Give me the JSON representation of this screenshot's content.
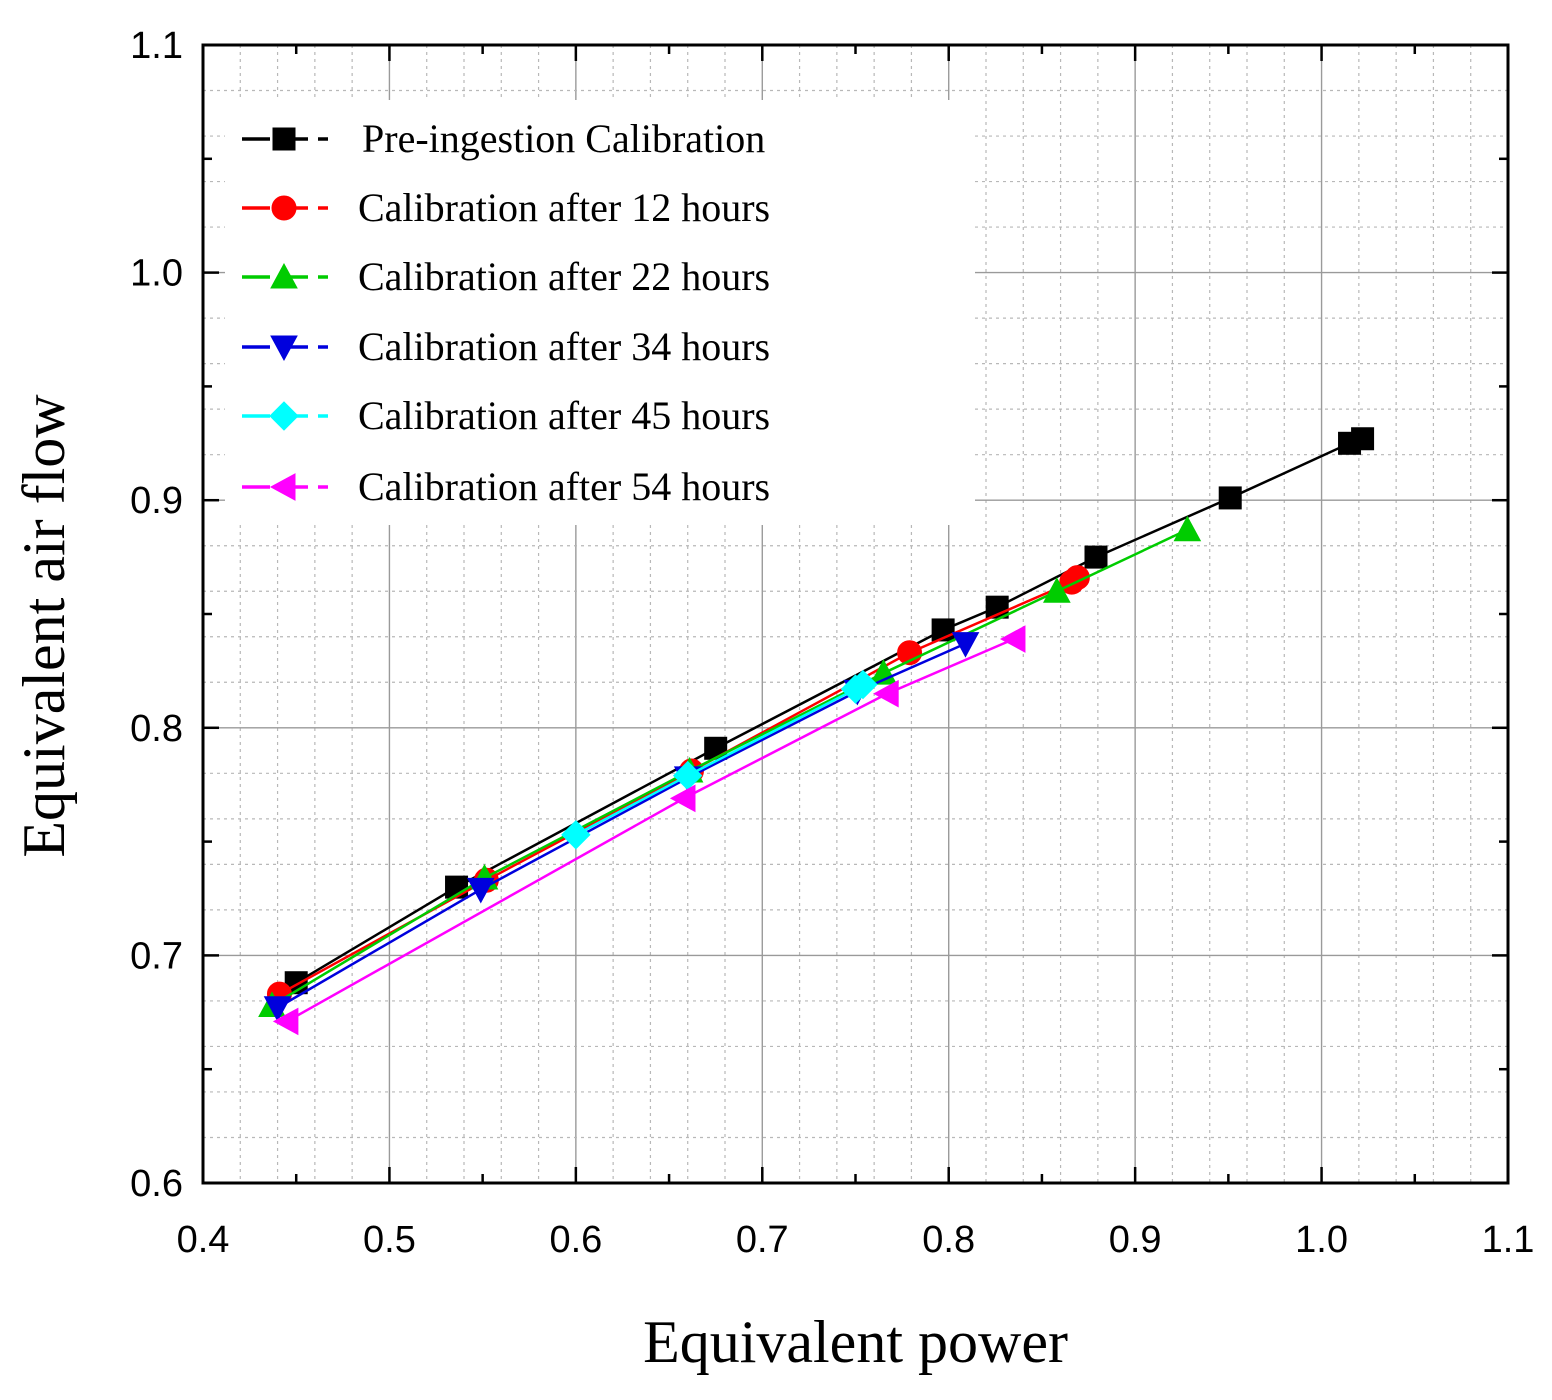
{
  "chart_data": {
    "type": "line",
    "title": "",
    "xlabel": "Equivalent power",
    "ylabel": "Equivalent air flow",
    "xlim": [
      0.4,
      1.1
    ],
    "ylim": [
      0.6,
      1.1
    ],
    "x_major_ticks": [
      0.4,
      0.5,
      0.6,
      0.7,
      0.8,
      0.9,
      1.0,
      1.1
    ],
    "y_major_ticks": [
      0.6,
      0.7,
      0.8,
      0.9,
      1.0,
      1.1
    ],
    "x_tick_labels": [
      "0.4",
      "0.5",
      "0.6",
      "0.7",
      "0.8",
      "0.9",
      "1.0",
      "1.1"
    ],
    "y_tick_labels": [
      "0.6",
      "0.7",
      "0.8",
      "0.9",
      "1.0",
      "1.1"
    ],
    "grid": true,
    "legend_position": "top-left",
    "series": [
      {
        "name": "Pre-ingestion Calibration",
        "color": "#000000",
        "marker": "square",
        "x": [
          0.45,
          0.536,
          0.675,
          0.797,
          0.826,
          0.879,
          0.951,
          1.015,
          1.022
        ],
        "y": [
          0.688,
          0.73,
          0.791,
          0.843,
          0.853,
          0.875,
          0.901,
          0.925,
          0.927
        ]
      },
      {
        "name": "Calibration after 12 hours",
        "color": "#ff0000",
        "marker": "circle",
        "x": [
          0.441,
          0.552,
          0.662,
          0.779,
          0.866,
          0.869
        ],
        "y": [
          0.683,
          0.733,
          0.781,
          0.833,
          0.864,
          0.866
        ]
      },
      {
        "name": "Calibration after 22 hours",
        "color": "#00cc00",
        "marker": "triangle-up",
        "x": [
          0.437,
          0.551,
          0.661,
          0.765,
          0.858,
          0.928
        ],
        "y": [
          0.678,
          0.734,
          0.781,
          0.824,
          0.86,
          0.887
        ]
      },
      {
        "name": "Calibration after 34 hours",
        "color": "#0000dd",
        "marker": "triangle-down",
        "x": [
          0.44,
          0.549,
          0.66,
          0.751,
          0.809
        ],
        "y": [
          0.677,
          0.729,
          0.778,
          0.816,
          0.837
        ]
      },
      {
        "name": "Calibration after 45 hours",
        "color": "#00ffff",
        "marker": "diamond",
        "x": [
          0.6,
          0.66,
          0.75,
          0.754
        ],
        "y": [
          0.753,
          0.779,
          0.817,
          0.819
        ]
      },
      {
        "name": "Calibration after 54 hours",
        "color": "#ff00ff",
        "marker": "triangle-left",
        "x": [
          0.445,
          0.658,
          0.767,
          0.835
        ],
        "y": [
          0.671,
          0.769,
          0.815,
          0.839
        ]
      }
    ]
  }
}
